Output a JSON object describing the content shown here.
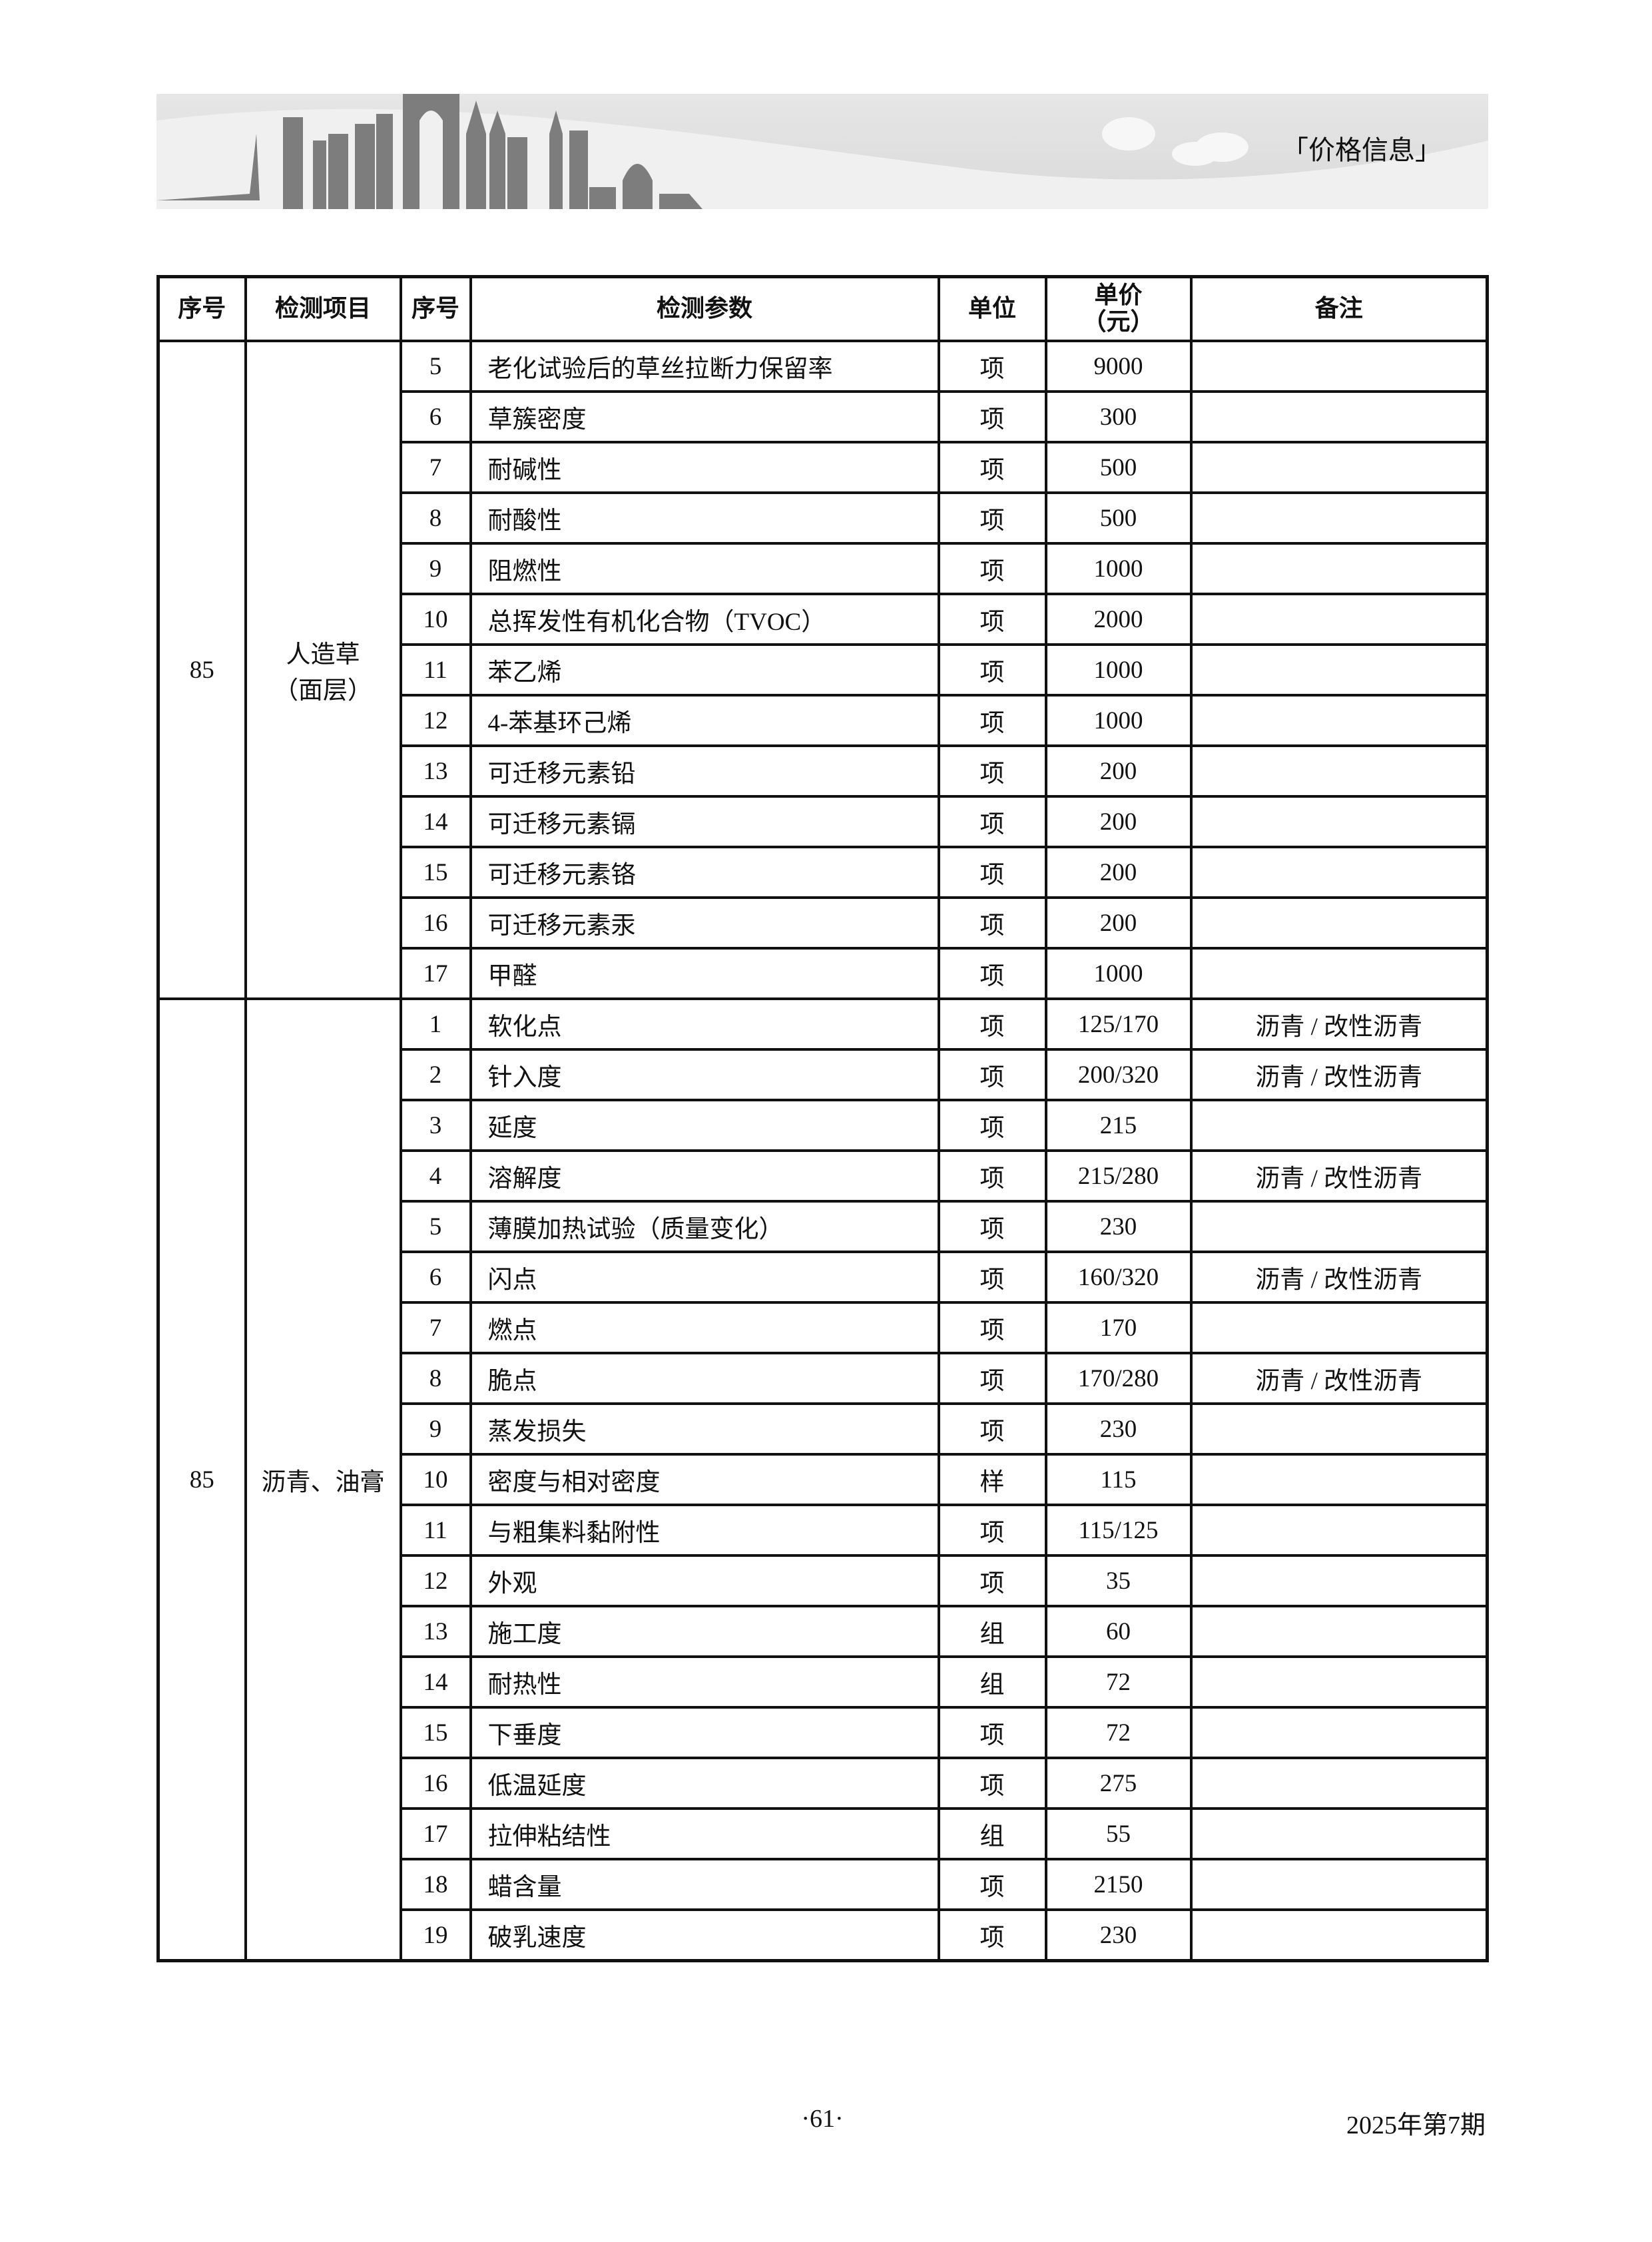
{
  "header": {
    "section_tag": "「价格信息」"
  },
  "table": {
    "columns": [
      "序号",
      "检测项目",
      "序号",
      "检测参数",
      "单位",
      "单价（元）",
      "备注"
    ],
    "groups": [
      {
        "no": "85",
        "item": "人造草（面层）",
        "rows": [
          {
            "no": "5",
            "param": "老化试验后的草丝拉断力保留率",
            "unit": "项",
            "price": "9000",
            "note": ""
          },
          {
            "no": "6",
            "param": "草簇密度",
            "unit": "项",
            "price": "300",
            "note": ""
          },
          {
            "no": "7",
            "param": "耐碱性",
            "unit": "项",
            "price": "500",
            "note": ""
          },
          {
            "no": "8",
            "param": "耐酸性",
            "unit": "项",
            "price": "500",
            "note": ""
          },
          {
            "no": "9",
            "param": "阻燃性",
            "unit": "项",
            "price": "1000",
            "note": ""
          },
          {
            "no": "10",
            "param": "总挥发性有机化合物（TVOC）",
            "unit": "项",
            "price": "2000",
            "note": ""
          },
          {
            "no": "11",
            "param": "苯乙烯",
            "unit": "项",
            "price": "1000",
            "note": ""
          },
          {
            "no": "12",
            "param": "4-苯基环己烯",
            "unit": "项",
            "price": "1000",
            "note": ""
          },
          {
            "no": "13",
            "param": "可迁移元素铅",
            "unit": "项",
            "price": "200",
            "note": ""
          },
          {
            "no": "14",
            "param": "可迁移元素镉",
            "unit": "项",
            "price": "200",
            "note": ""
          },
          {
            "no": "15",
            "param": "可迁移元素铬",
            "unit": "项",
            "price": "200",
            "note": ""
          },
          {
            "no": "16",
            "param": "可迁移元素汞",
            "unit": "项",
            "price": "200",
            "note": ""
          },
          {
            "no": "17",
            "param": "甲醛",
            "unit": "项",
            "price": "1000",
            "note": ""
          }
        ]
      },
      {
        "no": "85",
        "item": "沥青、油膏",
        "rows": [
          {
            "no": "1",
            "param": "软化点",
            "unit": "项",
            "price": "125/170",
            "note": "沥青 / 改性沥青"
          },
          {
            "no": "2",
            "param": "针入度",
            "unit": "项",
            "price": "200/320",
            "note": "沥青 / 改性沥青"
          },
          {
            "no": "3",
            "param": "延度",
            "unit": "项",
            "price": "215",
            "note": ""
          },
          {
            "no": "4",
            "param": "溶解度",
            "unit": "项",
            "price": "215/280",
            "note": "沥青 / 改性沥青"
          },
          {
            "no": "5",
            "param": "薄膜加热试验（质量变化）",
            "unit": "项",
            "price": "230",
            "note": ""
          },
          {
            "no": "6",
            "param": "闪点",
            "unit": "项",
            "price": "160/320",
            "note": "沥青 / 改性沥青"
          },
          {
            "no": "7",
            "param": "燃点",
            "unit": "项",
            "price": "170",
            "note": ""
          },
          {
            "no": "8",
            "param": "脆点",
            "unit": "项",
            "price": "170/280",
            "note": "沥青 / 改性沥青"
          },
          {
            "no": "9",
            "param": "蒸发损失",
            "unit": "项",
            "price": "230",
            "note": ""
          },
          {
            "no": "10",
            "param": "密度与相对密度",
            "unit": "样",
            "price": "115",
            "note": ""
          },
          {
            "no": "11",
            "param": "与粗集料黏附性",
            "unit": "项",
            "price": "115/125",
            "note": ""
          },
          {
            "no": "12",
            "param": "外观",
            "unit": "项",
            "price": "35",
            "note": ""
          },
          {
            "no": "13",
            "param": "施工度",
            "unit": "组",
            "price": "60",
            "note": ""
          },
          {
            "no": "14",
            "param": "耐热性",
            "unit": "组",
            "price": "72",
            "note": ""
          },
          {
            "no": "15",
            "param": "下垂度",
            "unit": "项",
            "price": "72",
            "note": ""
          },
          {
            "no": "16",
            "param": "低温延度",
            "unit": "项",
            "price": "275",
            "note": ""
          },
          {
            "no": "17",
            "param": "拉伸粘结性",
            "unit": "组",
            "price": "55",
            "note": ""
          },
          {
            "no": "18",
            "param": "蜡含量",
            "unit": "项",
            "price": "2150",
            "note": ""
          },
          {
            "no": "19",
            "param": "破乳速度",
            "unit": "项",
            "price": "230",
            "note": ""
          }
        ]
      }
    ]
  },
  "footer": {
    "page_number": "·61·",
    "issue": "2025年第7期"
  }
}
